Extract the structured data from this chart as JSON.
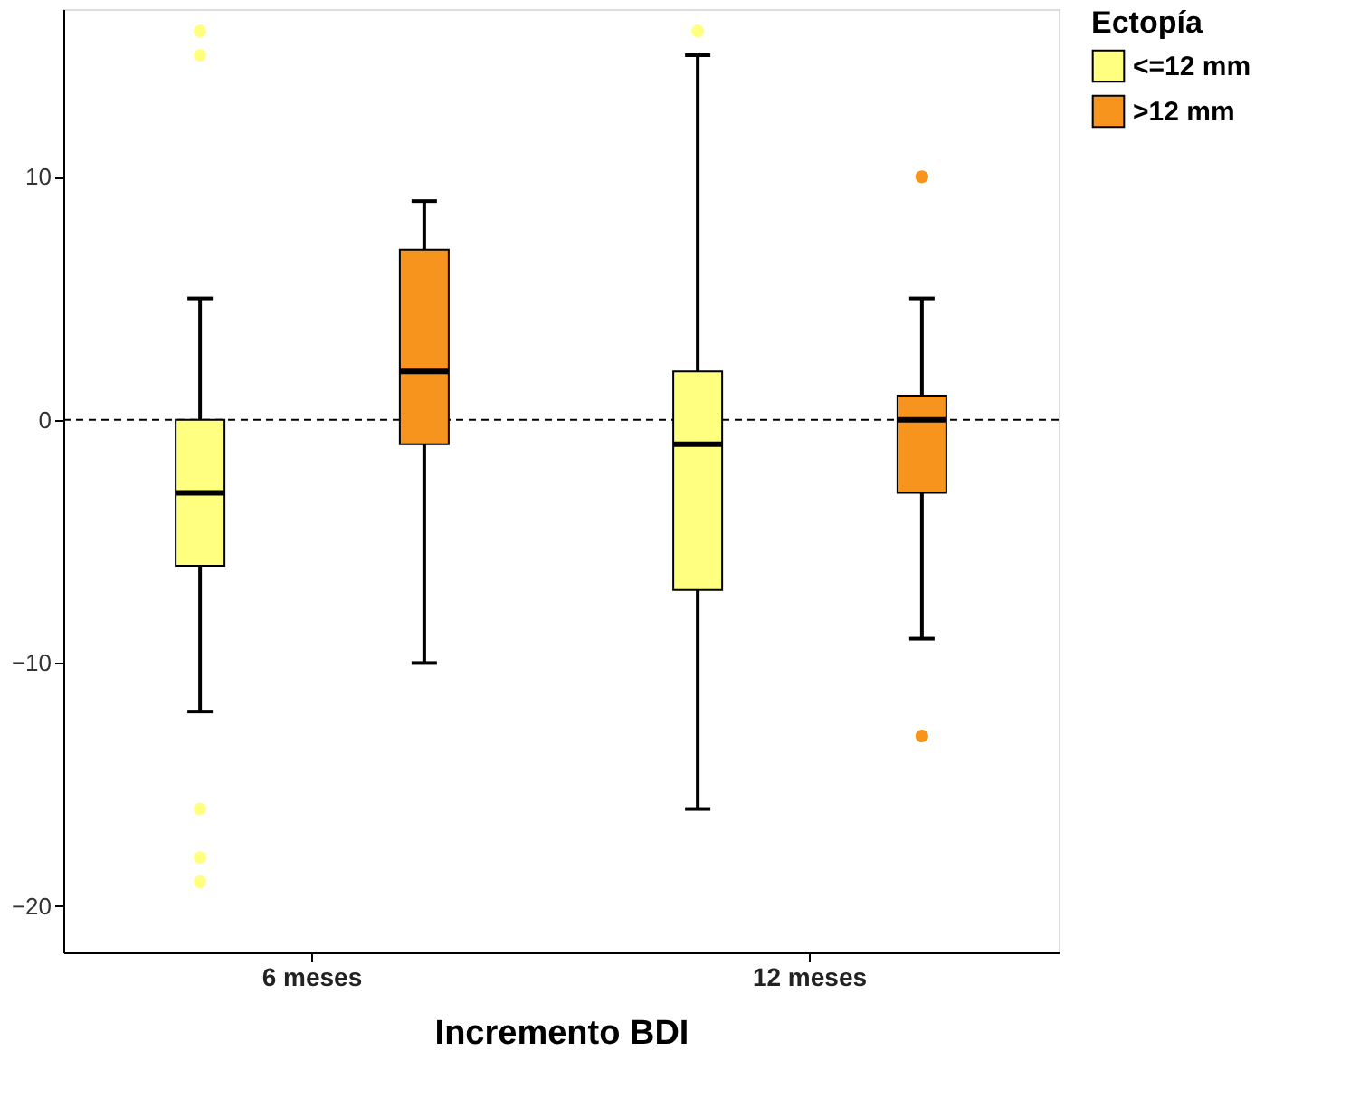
{
  "chart_data": {
    "type": "box",
    "xlabel": "Incremento BDI",
    "legend_title": "Ectopía",
    "categories": [
      "6 meses",
      "12 meses"
    ],
    "series": [
      {
        "name": "<=12 mm",
        "color": "#ffff80",
        "boxes": [
          {
            "low": -12,
            "q1": -6,
            "median": -3,
            "q3": 0,
            "high": 5,
            "outliers": [
              16,
              15,
              -16,
              -18,
              -19
            ]
          },
          {
            "low": -16,
            "q1": -7,
            "median": -1,
            "q3": 2,
            "high": 15,
            "outliers": [
              16
            ]
          }
        ]
      },
      {
        "name": ">12 mm",
        "color": "#f7941d",
        "boxes": [
          {
            "low": -10,
            "q1": -1,
            "median": 2,
            "q3": 7,
            "high": 9
          },
          {
            "low": -9,
            "q1": -3,
            "median": 0,
            "q3": 1,
            "high": 5,
            "outliers": [
              10,
              -13
            ]
          }
        ]
      }
    ],
    "ylim": [
      -21.9,
      16.9
    ],
    "yticks": [
      -20,
      -10,
      0,
      10
    ],
    "ref_lines": [
      {
        "axis": "y",
        "value": 0,
        "line_style": "dashed",
        "color": "#000000"
      }
    ],
    "grid": false,
    "legend": "right"
  }
}
